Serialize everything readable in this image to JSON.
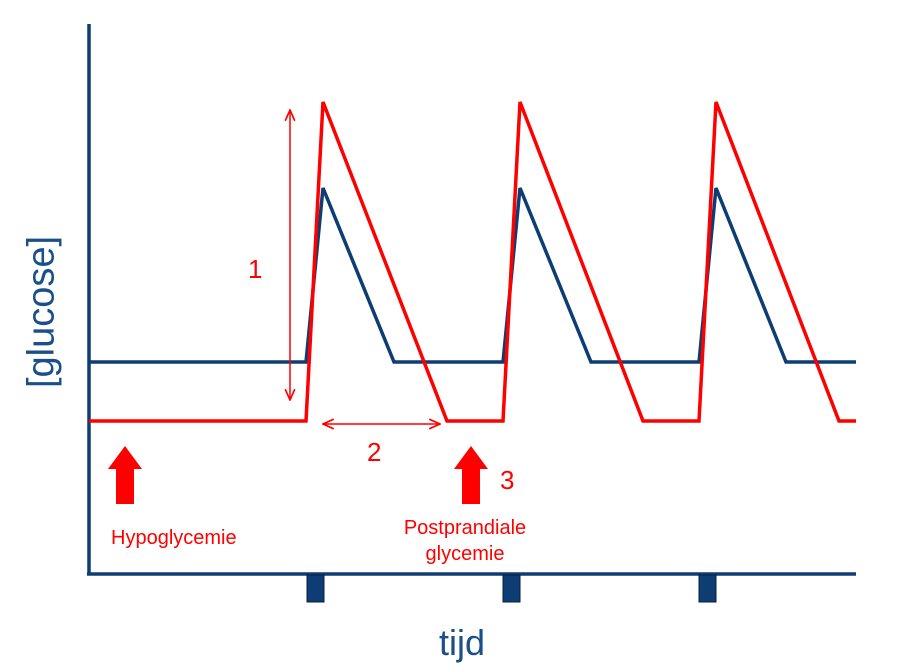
{
  "axes": {
    "y_label": "[glucose]",
    "x_label": "tijd"
  },
  "annotations": {
    "marker_1": "1",
    "marker_2": "2",
    "marker_3": "3",
    "hypoglycemie": "Hypoglycemie",
    "postprandiale_line1": "Postprandiale",
    "postprandiale_line2": "glycemie"
  },
  "colors": {
    "blue": "#0d3d73",
    "red": "#ff0000",
    "axis": "#0d3d73",
    "label_blue": "#1b4f8a"
  },
  "series": {
    "meal_markers": 3
  }
}
